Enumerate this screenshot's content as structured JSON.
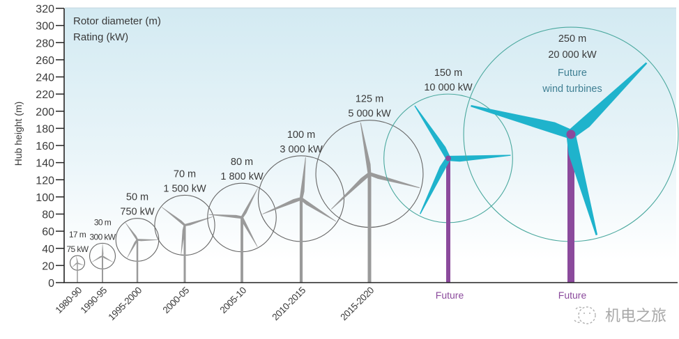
{
  "chart_data": {
    "type": "scatter",
    "title": "",
    "xlabel": "",
    "ylabel": "Hub height (m)",
    "ylim": [
      0,
      320
    ],
    "yticks": [
      0,
      20,
      40,
      60,
      80,
      100,
      120,
      140,
      160,
      180,
      200,
      220,
      240,
      260,
      280,
      300,
      320
    ],
    "grid": false,
    "legend": {
      "position": "top-left",
      "entries": [
        "Rotor diameter (m)",
        "Rating (kW)"
      ]
    },
    "categories": [
      "1980-90",
      "1990-95",
      "1995-2000",
      "2000-05",
      "2005-10",
      "2010-2015",
      "2015-2020",
      "Future",
      "Future"
    ],
    "series": [
      {
        "name": "Hub height (m)",
        "values": [
          23,
          31,
          50,
          67,
          76,
          98,
          127,
          145,
          173
        ]
      },
      {
        "name": "Rotor diameter (m)",
        "values": [
          17,
          30,
          50,
          70,
          80,
          100,
          125,
          150,
          250
        ]
      },
      {
        "name": "Rating (kW)",
        "values": [
          75,
          300,
          750,
          1500,
          1800,
          3000,
          5000,
          10000,
          20000
        ]
      }
    ],
    "point_labels": [
      {
        "diameter": "17 m",
        "rating": "75 kW",
        "future": false
      },
      {
        "diameter": "30 m",
        "rating": "300 kW",
        "future": false
      },
      {
        "diameter": "50 m",
        "rating": "750 kW",
        "future": false
      },
      {
        "diameter": "70 m",
        "rating": "1 500 kW",
        "future": false
      },
      {
        "diameter": "80 m",
        "rating": "1 800 kW",
        "future": false
      },
      {
        "diameter": "100 m",
        "rating": "3 000 kW",
        "future": false
      },
      {
        "diameter": "125 m",
        "rating": "5 000 kW",
        "future": false
      },
      {
        "diameter": "150 m",
        "rating": "10 000 kW",
        "future": true
      },
      {
        "diameter": "250 m",
        "rating": "20 000 kW",
        "future": true
      }
    ],
    "annotation": [
      "Future",
      "wind turbines"
    ]
  },
  "colors": {
    "historical_turbine": "#9a9a9a",
    "historical_rotor_circle": "#666666",
    "future_blade": "#1fb3cc",
    "future_tower": "#8b4a9c",
    "future_rotor_circle": "#4aa89e",
    "annotation_text": "#3f7f93",
    "background_top": "#d3eaf2"
  },
  "watermark": {
    "text": "机电之旅",
    "icon": "wechat-smile-icon"
  }
}
